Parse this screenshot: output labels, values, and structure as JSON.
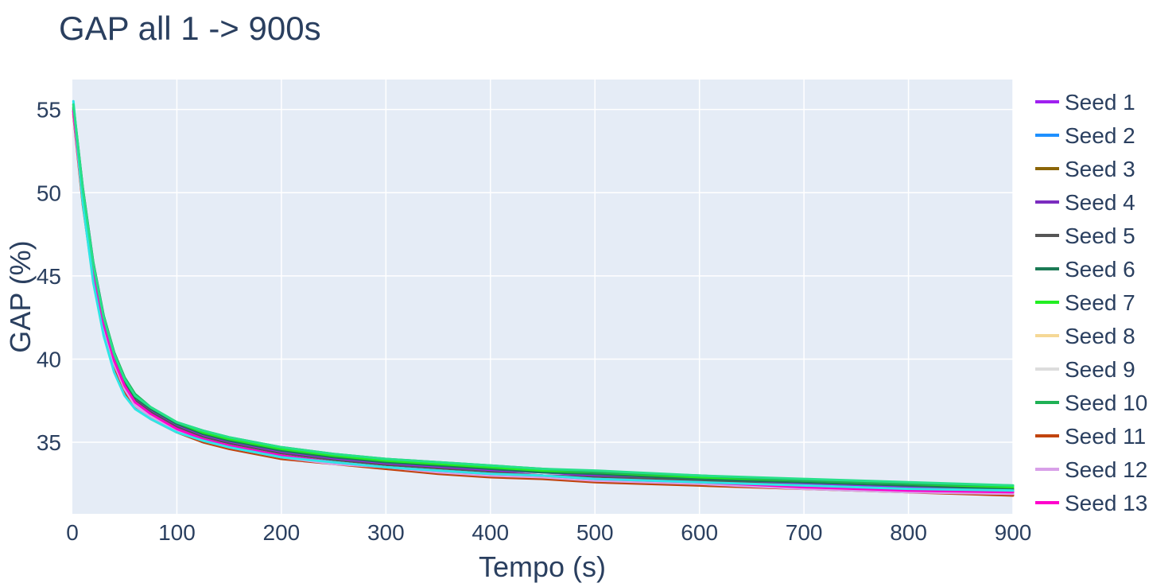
{
  "chart_data": {
    "type": "line",
    "title": "GAP all 1 -> 900s",
    "xlabel": "Tempo (s)",
    "ylabel": "GAP (%)",
    "xlim": [
      0,
      900
    ],
    "ylim": [
      30.7,
      56.8
    ],
    "x_ticks": [
      0,
      100,
      200,
      300,
      400,
      500,
      600,
      700,
      800,
      900
    ],
    "y_ticks": [
      35,
      40,
      45,
      50,
      55
    ],
    "grid": true,
    "legend_position": "right",
    "x": [
      1,
      10,
      20,
      30,
      40,
      50,
      60,
      75,
      100,
      125,
      150,
      200,
      250,
      300,
      350,
      400,
      450,
      500,
      600,
      700,
      800,
      900
    ],
    "series": [
      {
        "name": "Seed 1",
        "color": "#a020f0",
        "values": [
          55.1,
          50.3,
          45.8,
          42.6,
          40.3,
          38.7,
          37.7,
          36.9,
          36.0,
          35.4,
          35.0,
          34.4,
          34.0,
          33.7,
          33.5,
          33.3,
          33.2,
          33.0,
          32.8,
          32.5,
          32.3,
          32.1
        ]
      },
      {
        "name": "Seed 2",
        "color": "#1e90ff",
        "values": [
          54.8,
          49.5,
          45.0,
          41.9,
          39.7,
          38.2,
          37.3,
          36.6,
          35.7,
          35.2,
          34.8,
          34.2,
          33.8,
          33.5,
          33.3,
          33.1,
          32.9,
          32.8,
          32.5,
          32.3,
          32.1,
          31.9
        ]
      },
      {
        "name": "Seed 3",
        "color": "#8b6508",
        "values": [
          54.9,
          49.7,
          45.2,
          42.1,
          39.9,
          38.4,
          37.4,
          36.7,
          35.8,
          35.2,
          34.8,
          34.2,
          33.8,
          33.5,
          33.3,
          33.1,
          32.9,
          32.8,
          32.6,
          32.3,
          32.1,
          32.0
        ]
      },
      {
        "name": "Seed 4",
        "color": "#7b2cbf",
        "values": [
          54.9,
          49.8,
          45.3,
          42.2,
          40.0,
          38.5,
          37.5,
          36.8,
          35.9,
          35.3,
          34.9,
          34.3,
          33.9,
          33.6,
          33.4,
          33.2,
          33.0,
          32.9,
          32.6,
          32.4,
          32.2,
          32.0
        ]
      },
      {
        "name": "Seed 5",
        "color": "#555555",
        "values": [
          55.0,
          49.9,
          45.4,
          42.2,
          40.0,
          38.5,
          37.5,
          36.8,
          35.9,
          35.3,
          34.9,
          34.3,
          33.9,
          33.6,
          33.4,
          33.2,
          33.0,
          32.9,
          32.7,
          32.4,
          32.2,
          32.1
        ]
      },
      {
        "name": "Seed 6",
        "color": "#1b7a55",
        "values": [
          55.1,
          50.1,
          45.6,
          42.4,
          40.2,
          38.7,
          37.7,
          37.0,
          36.1,
          35.5,
          35.1,
          34.5,
          34.1,
          33.8,
          33.6,
          33.4,
          33.2,
          33.1,
          32.8,
          32.6,
          32.4,
          32.2
        ]
      },
      {
        "name": "Seed 7",
        "color": "#22ee22",
        "values": [
          55.2,
          50.2,
          45.7,
          42.5,
          40.3,
          38.8,
          37.8,
          37.1,
          36.2,
          35.6,
          35.2,
          34.6,
          34.2,
          33.9,
          33.7,
          33.5,
          33.3,
          33.2,
          32.9,
          32.7,
          32.5,
          32.3
        ]
      },
      {
        "name": "Seed 8",
        "color": "#f5d896",
        "values": [
          54.7,
          49.4,
          44.9,
          41.8,
          39.6,
          38.1,
          37.2,
          36.5,
          35.6,
          35.1,
          34.7,
          34.1,
          33.7,
          33.4,
          33.2,
          33.0,
          32.8,
          32.7,
          32.4,
          32.2,
          32.0,
          31.9
        ]
      },
      {
        "name": "Seed 9",
        "color": "#dddddd",
        "values": [
          54.8,
          49.6,
          45.1,
          42.0,
          39.8,
          38.3,
          37.3,
          36.6,
          35.7,
          35.2,
          34.8,
          34.2,
          33.8,
          33.5,
          33.3,
          33.1,
          32.9,
          32.8,
          32.5,
          32.3,
          32.1,
          32.0
        ]
      },
      {
        "name": "Seed 10",
        "color": "#1fb155",
        "values": [
          55.3,
          50.3,
          45.8,
          42.6,
          40.4,
          38.9,
          37.9,
          37.1,
          36.2,
          35.7,
          35.3,
          34.7,
          34.3,
          34.0,
          33.8,
          33.6,
          33.4,
          33.2,
          33.0,
          32.7,
          32.5,
          32.4
        ]
      },
      {
        "name": "Seed 11",
        "color": "#c1440e",
        "values": [
          54.7,
          49.3,
          44.8,
          41.7,
          39.5,
          38.0,
          37.1,
          36.4,
          35.6,
          35.0,
          34.6,
          34.0,
          33.7,
          33.4,
          33.1,
          32.9,
          32.8,
          32.6,
          32.4,
          32.2,
          32.0,
          31.8
        ]
      },
      {
        "name": "Seed 12",
        "color": "#d8a0e8",
        "values": [
          54.8,
          49.5,
          45.0,
          41.9,
          39.7,
          38.2,
          37.2,
          36.5,
          35.7,
          35.1,
          34.7,
          34.1,
          33.7,
          33.5,
          33.2,
          33.0,
          32.9,
          32.7,
          32.5,
          32.2,
          32.0,
          31.9
        ]
      },
      {
        "name": "Seed 13",
        "color": "#ff00cc",
        "values": [
          54.9,
          49.7,
          45.2,
          42.1,
          39.9,
          38.4,
          37.4,
          36.7,
          35.8,
          35.2,
          34.8,
          34.2,
          33.8,
          33.5,
          33.3,
          33.1,
          33.0,
          32.8,
          32.6,
          32.3,
          32.1,
          32.0
        ]
      },
      {
        "name": "",
        "color": "#2ee6e6",
        "values": [
          55.5,
          49.4,
          44.6,
          41.4,
          39.2,
          37.8,
          37.0,
          36.4,
          35.6,
          35.1,
          34.7,
          34.1,
          33.8,
          33.5,
          33.3,
          33.1,
          33.0,
          32.8,
          32.6,
          32.4,
          32.2,
          32.1
        ]
      },
      {
        "name": "",
        "color": "#27e08a",
        "values": [
          55.3,
          50.2,
          45.7,
          42.5,
          40.3,
          38.8,
          37.8,
          37.1,
          36.2,
          35.7,
          35.3,
          34.7,
          34.3,
          34.0,
          33.8,
          33.6,
          33.4,
          33.3,
          33.0,
          32.8,
          32.6,
          32.4
        ]
      }
    ]
  }
}
